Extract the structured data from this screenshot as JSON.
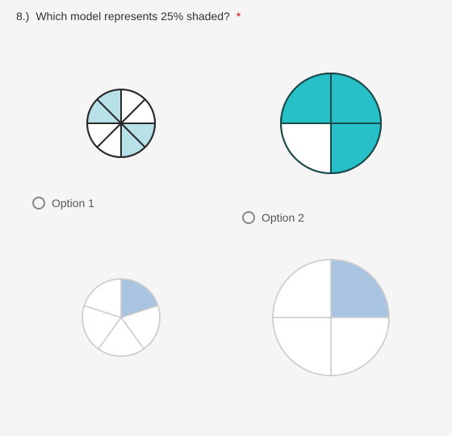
{
  "question": {
    "number": "8.)",
    "text": "Which model represents 25% shaded?",
    "required_marker": "*"
  },
  "options": {
    "opt1_label": "Option 1",
    "opt2_label": "Option 2"
  },
  "charts": {
    "top_left": {
      "type": "pie",
      "slices": 8,
      "shaded_slices": [
        2,
        3,
        6,
        7
      ],
      "shaded_fill": "#b8e0e8",
      "unshaded_fill": "#ffffff",
      "stroke": "#2a2a2a",
      "stroke_width": 2,
      "radius": 42,
      "background": "#ffffff"
    },
    "top_right": {
      "type": "pie",
      "slices": 4,
      "shaded_slices": [
        0,
        1,
        3
      ],
      "shaded_fill": "#28c0c8",
      "unshaded_fill": "#ffffff",
      "stroke": "#1a4a4a",
      "stroke_width": 2,
      "radius": 62,
      "background": "#ffffff"
    },
    "bottom_left": {
      "type": "pie",
      "slices": 5,
      "shaded_slices": [
        0
      ],
      "shaded_fill": "#a8c4e0",
      "unshaded_fill": "#ffffff",
      "stroke": "#cccccc",
      "stroke_width": 1.5,
      "radius": 48,
      "background": "#ffffff"
    },
    "bottom_right": {
      "type": "pie",
      "slices": 4,
      "shaded_slices": [
        0
      ],
      "shaded_fill": "#a8c4e0",
      "unshaded_fill": "#ffffff",
      "stroke": "#cccccc",
      "stroke_width": 1.5,
      "radius": 72,
      "background": "#ffffff"
    }
  }
}
